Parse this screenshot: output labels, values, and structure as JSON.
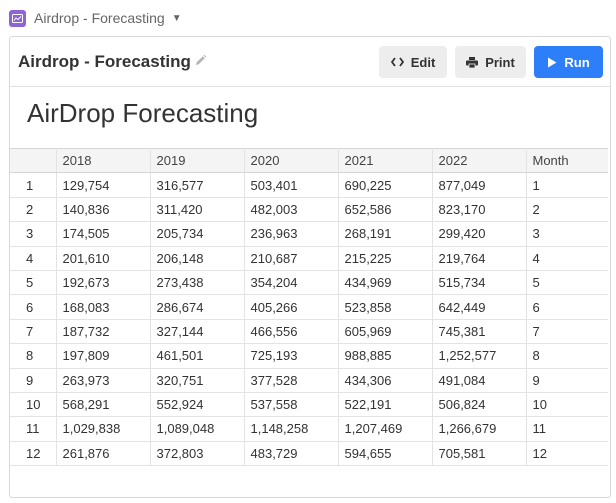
{
  "app": {
    "title": "Airdrop - Forecasting",
    "icon": "chart-app-icon",
    "accent": "#8e63d6"
  },
  "block": {
    "title": "Airdrop - Forecasting",
    "edit_label": "Edit",
    "print_label": "Print",
    "run_label": "Run",
    "run_color": "#2d7ff9"
  },
  "report": {
    "heading": "AirDrop Forecasting"
  },
  "table": {
    "columns": [
      "",
      "2018",
      "2019",
      "2020",
      "2021",
      "2022",
      "Month"
    ],
    "rows": [
      [
        "1",
        "129,754",
        "316,577",
        "503,401",
        "690,225",
        "877,049",
        "1"
      ],
      [
        "2",
        "140,836",
        "311,420",
        "482,003",
        "652,586",
        "823,170",
        "2"
      ],
      [
        "3",
        "174,505",
        "205,734",
        "236,963",
        "268,191",
        "299,420",
        "3"
      ],
      [
        "4",
        "201,610",
        "206,148",
        "210,687",
        "215,225",
        "219,764",
        "4"
      ],
      [
        "5",
        "192,673",
        "273,438",
        "354,204",
        "434,969",
        "515,734",
        "5"
      ],
      [
        "6",
        "168,083",
        "286,674",
        "405,266",
        "523,858",
        "642,449",
        "6"
      ],
      [
        "7",
        "187,732",
        "327,144",
        "466,556",
        "605,969",
        "745,381",
        "7"
      ],
      [
        "8",
        "197,809",
        "461,501",
        "725,193",
        "988,885",
        "1,252,577",
        "8"
      ],
      [
        "9",
        "263,973",
        "320,751",
        "377,528",
        "434,306",
        "491,084",
        "9"
      ],
      [
        "10",
        "568,291",
        "552,924",
        "537,558",
        "522,191",
        "506,824",
        "10"
      ],
      [
        "11",
        "1,029,838",
        "1,089,048",
        "1,148,258",
        "1,207,469",
        "1,266,679",
        "11"
      ],
      [
        "12",
        "261,876",
        "372,803",
        "483,729",
        "594,655",
        "705,581",
        "12"
      ]
    ]
  }
}
